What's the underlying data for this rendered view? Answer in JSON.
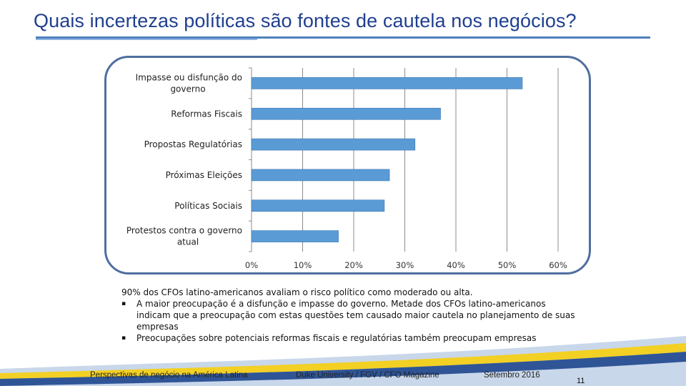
{
  "slide": {
    "title": "Quais incertezas políticas são fontes de cautela nos negócios?",
    "page_number": "11"
  },
  "chart_data": {
    "type": "bar",
    "orientation": "horizontal",
    "categories": [
      "Impasse ou disfunção do governo",
      "Reformas Fiscais",
      "Propostas Regulatórias",
      "Próximas Eleições",
      "Políticas Sociais",
      "Protestos contra o governo atual"
    ],
    "category_lines": [
      [
        "Impasse ou disfunção do",
        "governo"
      ],
      [
        "Reformas Fiscais"
      ],
      [
        "Propostas Regulatórias"
      ],
      [
        "Próximas Eleições"
      ],
      [
        "Políticas Sociais"
      ],
      [
        "Protestos contra o governo",
        "atual"
      ]
    ],
    "values": [
      53,
      37,
      32,
      27,
      26,
      17
    ],
    "xlim": [
      0,
      60
    ],
    "xticks": [
      "0%",
      "10%",
      "20%",
      "30%",
      "40%",
      "50%",
      "60%"
    ],
    "bar_color": "#5b9bd5",
    "grid": true,
    "legend": "none",
    "title": "",
    "xlabel": "",
    "ylabel": ""
  },
  "summary": {
    "lead": "90% dos CFOs latino-americanos avaliam o risco político como moderado ou alta.",
    "bullets": [
      "A maior preocupação é a disfunção e impasse do governo. Metade dos CFOs latino-americanos indicam que a preocupação com estas questões tem causado maior cautela no planejamento de suas empresas",
      "Preocupações sobre potenciais reformas fiscais e regulatórias também preocupam empresas"
    ],
    "bullet_glyph": "▪"
  },
  "footer": {
    "left": "Perspectivas de negócio na América Latina",
    "center": "Duke University / FGV / CFO Magazine",
    "right": "Setembro 2016"
  },
  "colors": {
    "title": "#1f3f8f",
    "frame": "#4f6f9f",
    "footer_blue": "#2f5597",
    "footer_yellow": "#f2d024",
    "footer_light": "#c9d7ea"
  }
}
